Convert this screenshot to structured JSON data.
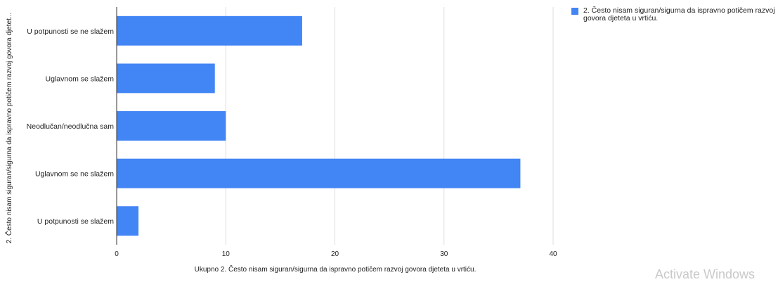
{
  "chart_data": {
    "type": "bar",
    "orientation": "horizontal",
    "categories": [
      "U potpunosti se ne slažem",
      "Uglavnom se slažem",
      "Neodlučan/neodlučna sam",
      "Uglavnom se ne slažem",
      "U potpunosti se slažem"
    ],
    "series": [
      {
        "name": "2. Često nisam siguran/sigurna da ispravno potičem razvoj govora djeteta u vrtiću.",
        "values": [
          17,
          9,
          10,
          37,
          2
        ],
        "color": "#4285f4"
      }
    ],
    "xlabel": "Ukupno 2. Često nisam siguran/sigurna da ispravno potičem razvoj govora djeteta u vrtiću.",
    "ylabel": "2. Često nisam siguran/sigurna da ispravno potičem razvoj govora djetet...",
    "xlim": [
      0,
      40
    ],
    "xticks": [
      0,
      10,
      20,
      30,
      40
    ],
    "grid": true,
    "legend_position": "top-right"
  },
  "watermark": "Activate Windows"
}
